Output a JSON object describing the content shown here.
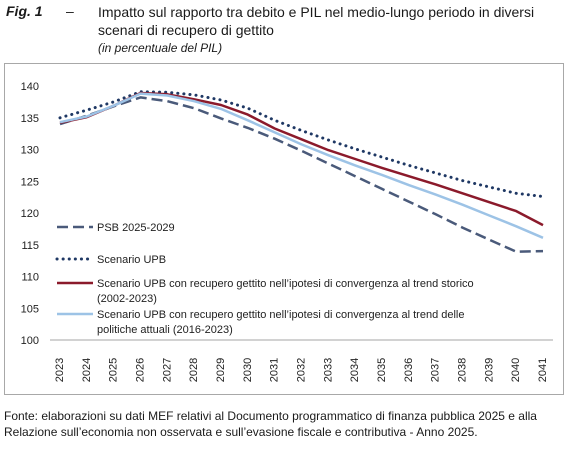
{
  "figure": {
    "label": "Fig. 1",
    "dash": "–",
    "title": "Impatto sul rapporto tra debito e PIL nel medio-lungo periodo in diversi scenari di recupero di gettito",
    "subtitle": "(in percentuale del PIL)",
    "source": "Fonte: elaborazioni su dati MEF relativi al Documento programmatico di finanza pubblica 2025 e alla Relazione sull’economia non osservata e sull’evasione fiscale e contributiva - Anno 2025."
  },
  "chart_data": {
    "type": "line",
    "x": [
      "2023",
      "2024",
      "2025",
      "2026",
      "2027",
      "2028",
      "2029",
      "2030",
      "2031",
      "2032",
      "2033",
      "2034",
      "2035",
      "2036",
      "2037",
      "2038",
      "2039",
      "2040",
      "2041"
    ],
    "ylim": [
      100,
      140
    ],
    "yticks": [
      100,
      105,
      110,
      115,
      120,
      125,
      130,
      135,
      140
    ],
    "grid": false,
    "legend_position": "left-bottom",
    "series": [
      {
        "name": "PSB 2025-2029",
        "color": "#4a5a7a",
        "style": "long-dash",
        "values": [
          134.0,
          135.3,
          136.8,
          138.2,
          137.6,
          136.5,
          134.9,
          133.4,
          131.7,
          129.8,
          127.8,
          125.8,
          123.8,
          121.8,
          119.8,
          117.7,
          115.8,
          113.9,
          114.0
        ]
      },
      {
        "name": "Scenario UPB",
        "color": "#1f3864",
        "style": "dotted",
        "values": [
          135.0,
          136.2,
          137.5,
          139.1,
          139.0,
          138.6,
          137.8,
          136.5,
          134.6,
          133.0,
          131.5,
          130.1,
          128.8,
          127.5,
          126.3,
          125.1,
          124.1,
          123.1,
          122.6
        ]
      },
      {
        "name": "Scenario UPB con recupero gettito  nell’ipotesi di convergenza al trend storico (2002-2023)",
        "color": "#8b1a2b",
        "style": "solid",
        "values": [
          134.2,
          135.1,
          136.9,
          138.9,
          138.7,
          137.9,
          137.0,
          135.5,
          133.3,
          131.6,
          129.9,
          128.5,
          127.1,
          125.8,
          124.5,
          123.1,
          121.7,
          120.3,
          118.1
        ]
      },
      {
        "name": "Scenario UPB con recupero gettito  nell’ipotesi di convergenza al trend delle politiche attuali (2016-2023)",
        "color": "#9dc3e6",
        "style": "solid",
        "values": [
          134.3,
          135.2,
          136.9,
          138.8,
          138.5,
          137.6,
          136.4,
          134.6,
          132.7,
          130.8,
          129.1,
          127.5,
          126.0,
          124.4,
          122.9,
          121.3,
          119.6,
          117.9,
          116.1
        ]
      }
    ]
  }
}
